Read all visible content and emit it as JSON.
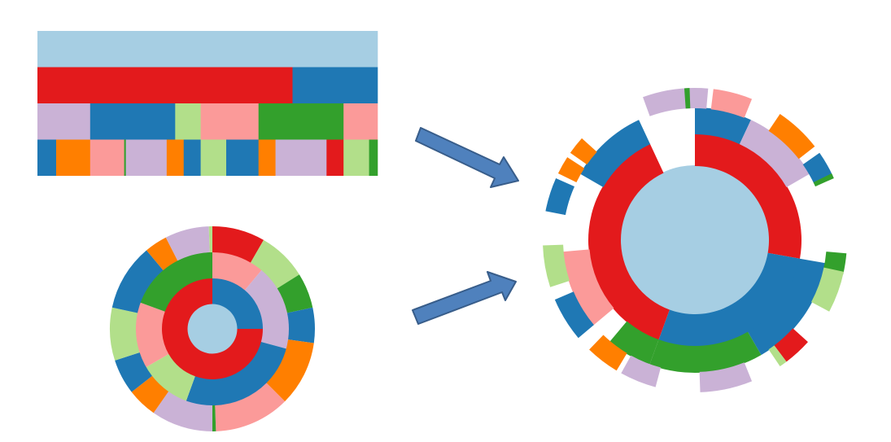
{
  "colors": {
    "light_blue": "#a6cee3",
    "blue": "#1f78b4",
    "light_green": "#b2df8a",
    "green": "#33a02c",
    "pink": "#fb9a99",
    "red": "#e31a1c",
    "orange": "#ff7f00",
    "lavender": "#cab2d6",
    "arrow_fill": "#4f81bd",
    "arrow_stroke": "#385d8a"
  },
  "icicle": {
    "levels": [
      [
        {
          "w": 1,
          "c": "light_blue"
        }
      ],
      [
        {
          "w": 0.75,
          "c": "red"
        },
        {
          "w": 0.25,
          "c": "blue"
        }
      ],
      [
        {
          "w": 0.155,
          "c": "lavender"
        },
        {
          "w": 0.25,
          "c": "blue"
        },
        {
          "w": 0.075,
          "c": "light_green"
        },
        {
          "w": 0.17,
          "c": "pink"
        },
        {
          "w": 0.25,
          "c": "green"
        },
        {
          "w": 0.1,
          "c": "pink"
        }
      ],
      [
        {
          "w": 0.055,
          "c": "blue"
        },
        {
          "w": 0.1,
          "c": "orange"
        },
        {
          "w": 0.1,
          "c": "pink"
        },
        {
          "w": 0.005,
          "c": "green"
        },
        {
          "w": 0.12,
          "c": "lavender"
        },
        {
          "w": 0.05,
          "c": "orange"
        },
        {
          "w": 0.05,
          "c": "blue"
        },
        {
          "w": 0.075,
          "c": "light_green"
        },
        {
          "w": 0.095,
          "c": "blue"
        },
        {
          "w": 0.05,
          "c": "orange"
        },
        {
          "w": 0.15,
          "c": "lavender"
        },
        {
          "w": 0.05,
          "c": "red"
        },
        {
          "w": 0.075,
          "c": "light_green"
        },
        {
          "w": 0.025,
          "c": "green"
        }
      ]
    ]
  },
  "sunburst": {
    "center_color": "light_blue",
    "rings": [
      [
        {
          "a0": 0,
          "a1": 90,
          "c": "blue"
        },
        {
          "a0": 90,
          "a1": 360,
          "c": "red"
        }
      ],
      [
        {
          "a0": 0,
          "a1": 40,
          "c": "pink"
        },
        {
          "a0": 40,
          "a1": 105,
          "c": "lavender"
        },
        {
          "a0": 105,
          "a1": 200,
          "c": "blue"
        },
        {
          "a0": 200,
          "a1": 240,
          "c": "light_green"
        },
        {
          "a0": 240,
          "a1": 290,
          "c": "pink"
        },
        {
          "a0": 290,
          "a1": 360,
          "c": "green"
        }
      ],
      [
        {
          "a0": 0,
          "a1": 30,
          "c": "red"
        },
        {
          "a0": 30,
          "a1": 58,
          "c": "light_green"
        },
        {
          "a0": 58,
          "a1": 78,
          "c": "green"
        },
        {
          "a0": 78,
          "a1": 98,
          "c": "blue"
        },
        {
          "a0": 98,
          "a1": 135,
          "c": "orange"
        },
        {
          "a0": 135,
          "a1": 178,
          "c": "pink"
        },
        {
          "a0": 178,
          "a1": 180,
          "c": "green"
        },
        {
          "a0": 180,
          "a1": 215,
          "c": "lavender"
        },
        {
          "a0": 215,
          "a1": 232,
          "c": "orange"
        },
        {
          "a0": 232,
          "a1": 252,
          "c": "blue"
        },
        {
          "a0": 252,
          "a1": 282,
          "c": "light_green"
        },
        {
          "a0": 282,
          "a1": 320,
          "c": "blue"
        },
        {
          "a0": 320,
          "a1": 333,
          "c": "orange"
        },
        {
          "a0": 333,
          "a1": 358,
          "c": "lavender"
        },
        {
          "a0": 358,
          "a1": 360,
          "c": "light_green"
        }
      ]
    ]
  },
  "radial": {
    "center_color": "light_blue",
    "rings": [
      [
        {
          "a0": 0,
          "a1": 100,
          "c": "red"
        },
        {
          "a0": 100,
          "a1": 200,
          "c": "blue"
        },
        {
          "a0": 200,
          "a1": 335,
          "c": "red"
        }
      ],
      [
        {
          "a0": 0,
          "a1": 25,
          "c": "blue"
        },
        {
          "a0": 25,
          "a1": 60,
          "c": "lavender"
        },
        {
          "a0": 100,
          "a1": 150,
          "c": "blue"
        },
        {
          "a0": 150,
          "a1": 200,
          "c": "green"
        },
        {
          "a0": 200,
          "a1": 220,
          "c": "green"
        },
        {
          "a0": 230,
          "a1": 265,
          "c": "pink"
        },
        {
          "a0": 300,
          "a1": 335,
          "c": "blue"
        }
      ],
      [
        {
          "a0": -20,
          "a1": 5,
          "c": "lavender"
        },
        {
          "a0": 7,
          "a1": 22,
          "c": "pink"
        },
        {
          "a0": 34,
          "a1": 52,
          "c": "orange"
        },
        {
          "a0": 55,
          "a1": 65,
          "c": "blue"
        },
        {
          "a0": 64,
          "a1": 66,
          "c": "green"
        },
        {
          "a0": 95,
          "a1": 103,
          "c": "green"
        },
        {
          "a0": 102,
          "a1": 118,
          "c": "light_green"
        },
        {
          "a0": 132,
          "a1": 143,
          "c": "red"
        },
        {
          "a0": 143,
          "a1": 146,
          "c": "light_green"
        },
        {
          "a0": 158,
          "a1": 178,
          "c": "lavender"
        },
        {
          "a0": 195,
          "a1": 209,
          "c": "lavender"
        },
        {
          "a0": 211,
          "a1": 224,
          "c": "orange"
        },
        {
          "a0": 230,
          "a1": 247,
          "c": "blue"
        },
        {
          "a0": 252,
          "a1": 268,
          "c": "light_green"
        },
        {
          "a0": 281,
          "a1": 294,
          "c": "blue"
        },
        {
          "a0": 296,
          "a1": 303,
          "c": "orange"
        },
        {
          "a0": 305,
          "a1": 312,
          "c": "orange"
        },
        {
          "a0": 356,
          "a1": 358,
          "c": "green"
        }
      ]
    ]
  }
}
